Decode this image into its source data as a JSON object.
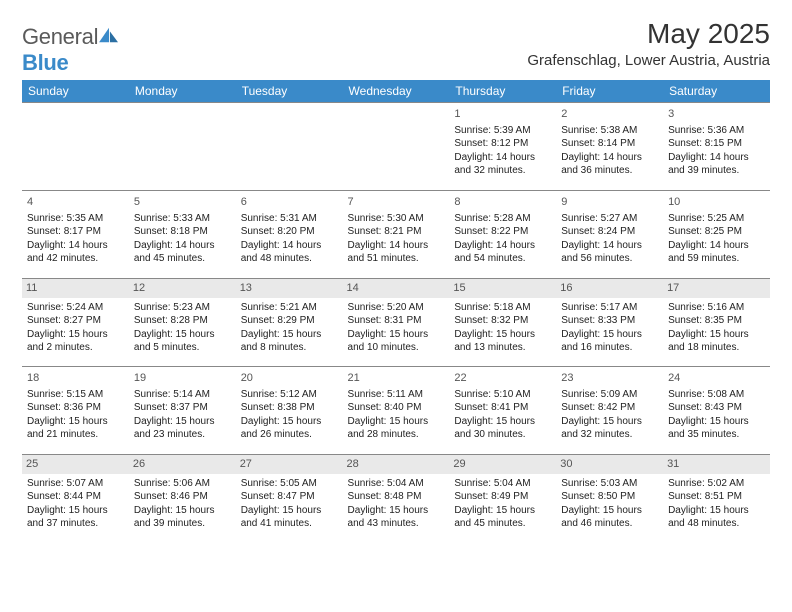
{
  "logo": {
    "word1": "General",
    "word2": "Blue"
  },
  "title": "May 2025",
  "location": "Grafenschlag, Lower Austria, Austria",
  "header_bg": "#3a8ac9",
  "days": [
    "Sunday",
    "Monday",
    "Tuesday",
    "Wednesday",
    "Thursday",
    "Friday",
    "Saturday"
  ],
  "weeks": [
    [
      null,
      null,
      null,
      null,
      {
        "n": "1",
        "sr": "5:39 AM",
        "ss": "8:12 PM",
        "dl": "14 hours and 32 minutes."
      },
      {
        "n": "2",
        "sr": "5:38 AM",
        "ss": "8:14 PM",
        "dl": "14 hours and 36 minutes."
      },
      {
        "n": "3",
        "sr": "5:36 AM",
        "ss": "8:15 PM",
        "dl": "14 hours and 39 minutes."
      }
    ],
    [
      {
        "n": "4",
        "sr": "5:35 AM",
        "ss": "8:17 PM",
        "dl": "14 hours and 42 minutes."
      },
      {
        "n": "5",
        "sr": "5:33 AM",
        "ss": "8:18 PM",
        "dl": "14 hours and 45 minutes."
      },
      {
        "n": "6",
        "sr": "5:31 AM",
        "ss": "8:20 PM",
        "dl": "14 hours and 48 minutes."
      },
      {
        "n": "7",
        "sr": "5:30 AM",
        "ss": "8:21 PM",
        "dl": "14 hours and 51 minutes."
      },
      {
        "n": "8",
        "sr": "5:28 AM",
        "ss": "8:22 PM",
        "dl": "14 hours and 54 minutes."
      },
      {
        "n": "9",
        "sr": "5:27 AM",
        "ss": "8:24 PM",
        "dl": "14 hours and 56 minutes."
      },
      {
        "n": "10",
        "sr": "5:25 AM",
        "ss": "8:25 PM",
        "dl": "14 hours and 59 minutes."
      }
    ],
    [
      {
        "n": "11",
        "sr": "5:24 AM",
        "ss": "8:27 PM",
        "dl": "15 hours and 2 minutes."
      },
      {
        "n": "12",
        "sr": "5:23 AM",
        "ss": "8:28 PM",
        "dl": "15 hours and 5 minutes."
      },
      {
        "n": "13",
        "sr": "5:21 AM",
        "ss": "8:29 PM",
        "dl": "15 hours and 8 minutes."
      },
      {
        "n": "14",
        "sr": "5:20 AM",
        "ss": "8:31 PM",
        "dl": "15 hours and 10 minutes."
      },
      {
        "n": "15",
        "sr": "5:18 AM",
        "ss": "8:32 PM",
        "dl": "15 hours and 13 minutes."
      },
      {
        "n": "16",
        "sr": "5:17 AM",
        "ss": "8:33 PM",
        "dl": "15 hours and 16 minutes."
      },
      {
        "n": "17",
        "sr": "5:16 AM",
        "ss": "8:35 PM",
        "dl": "15 hours and 18 minutes."
      }
    ],
    [
      {
        "n": "18",
        "sr": "5:15 AM",
        "ss": "8:36 PM",
        "dl": "15 hours and 21 minutes."
      },
      {
        "n": "19",
        "sr": "5:14 AM",
        "ss": "8:37 PM",
        "dl": "15 hours and 23 minutes."
      },
      {
        "n": "20",
        "sr": "5:12 AM",
        "ss": "8:38 PM",
        "dl": "15 hours and 26 minutes."
      },
      {
        "n": "21",
        "sr": "5:11 AM",
        "ss": "8:40 PM",
        "dl": "15 hours and 28 minutes."
      },
      {
        "n": "22",
        "sr": "5:10 AM",
        "ss": "8:41 PM",
        "dl": "15 hours and 30 minutes."
      },
      {
        "n": "23",
        "sr": "5:09 AM",
        "ss": "8:42 PM",
        "dl": "15 hours and 32 minutes."
      },
      {
        "n": "24",
        "sr": "5:08 AM",
        "ss": "8:43 PM",
        "dl": "15 hours and 35 minutes."
      }
    ],
    [
      {
        "n": "25",
        "sr": "5:07 AM",
        "ss": "8:44 PM",
        "dl": "15 hours and 37 minutes."
      },
      {
        "n": "26",
        "sr": "5:06 AM",
        "ss": "8:46 PM",
        "dl": "15 hours and 39 minutes."
      },
      {
        "n": "27",
        "sr": "5:05 AM",
        "ss": "8:47 PM",
        "dl": "15 hours and 41 minutes."
      },
      {
        "n": "28",
        "sr": "5:04 AM",
        "ss": "8:48 PM",
        "dl": "15 hours and 43 minutes."
      },
      {
        "n": "29",
        "sr": "5:04 AM",
        "ss": "8:49 PM",
        "dl": "15 hours and 45 minutes."
      },
      {
        "n": "30",
        "sr": "5:03 AM",
        "ss": "8:50 PM",
        "dl": "15 hours and 46 minutes."
      },
      {
        "n": "31",
        "sr": "5:02 AM",
        "ss": "8:51 PM",
        "dl": "15 hours and 48 minutes."
      }
    ]
  ],
  "labels": {
    "sunrise": "Sunrise: ",
    "sunset": "Sunset: ",
    "daylight": "Daylight: "
  },
  "shaded_rows": [
    2,
    4
  ]
}
